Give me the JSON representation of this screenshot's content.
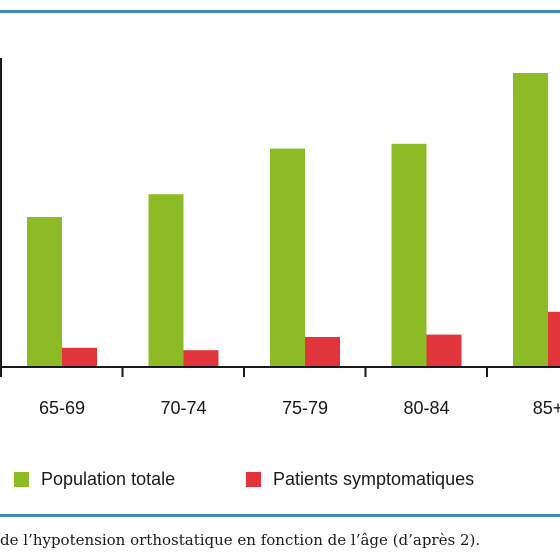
{
  "chart_data": {
    "type": "bar",
    "categories": [
      "65-69",
      "70-74",
      "75-79",
      "80-84",
      "85+"
    ],
    "series": [
      {
        "name": "Population totale",
        "color": "#8cbb26",
        "values": [
          12.5,
          14.4,
          18.2,
          18.6,
          24.5
        ]
      },
      {
        "name": "Patients symptomatiques",
        "color": "#e2353b",
        "values": [
          1.6,
          1.4,
          2.5,
          2.7,
          4.6
        ]
      }
    ],
    "ylim": [
      0,
      30
    ],
    "grid": false,
    "legend": "bottom",
    "title": "",
    "xlabel": "",
    "ylabel": ""
  },
  "frame_color": "#3d8cb6",
  "caption": "de l’hypotension orthostatique en fonction de l’âge (d’après 2)."
}
